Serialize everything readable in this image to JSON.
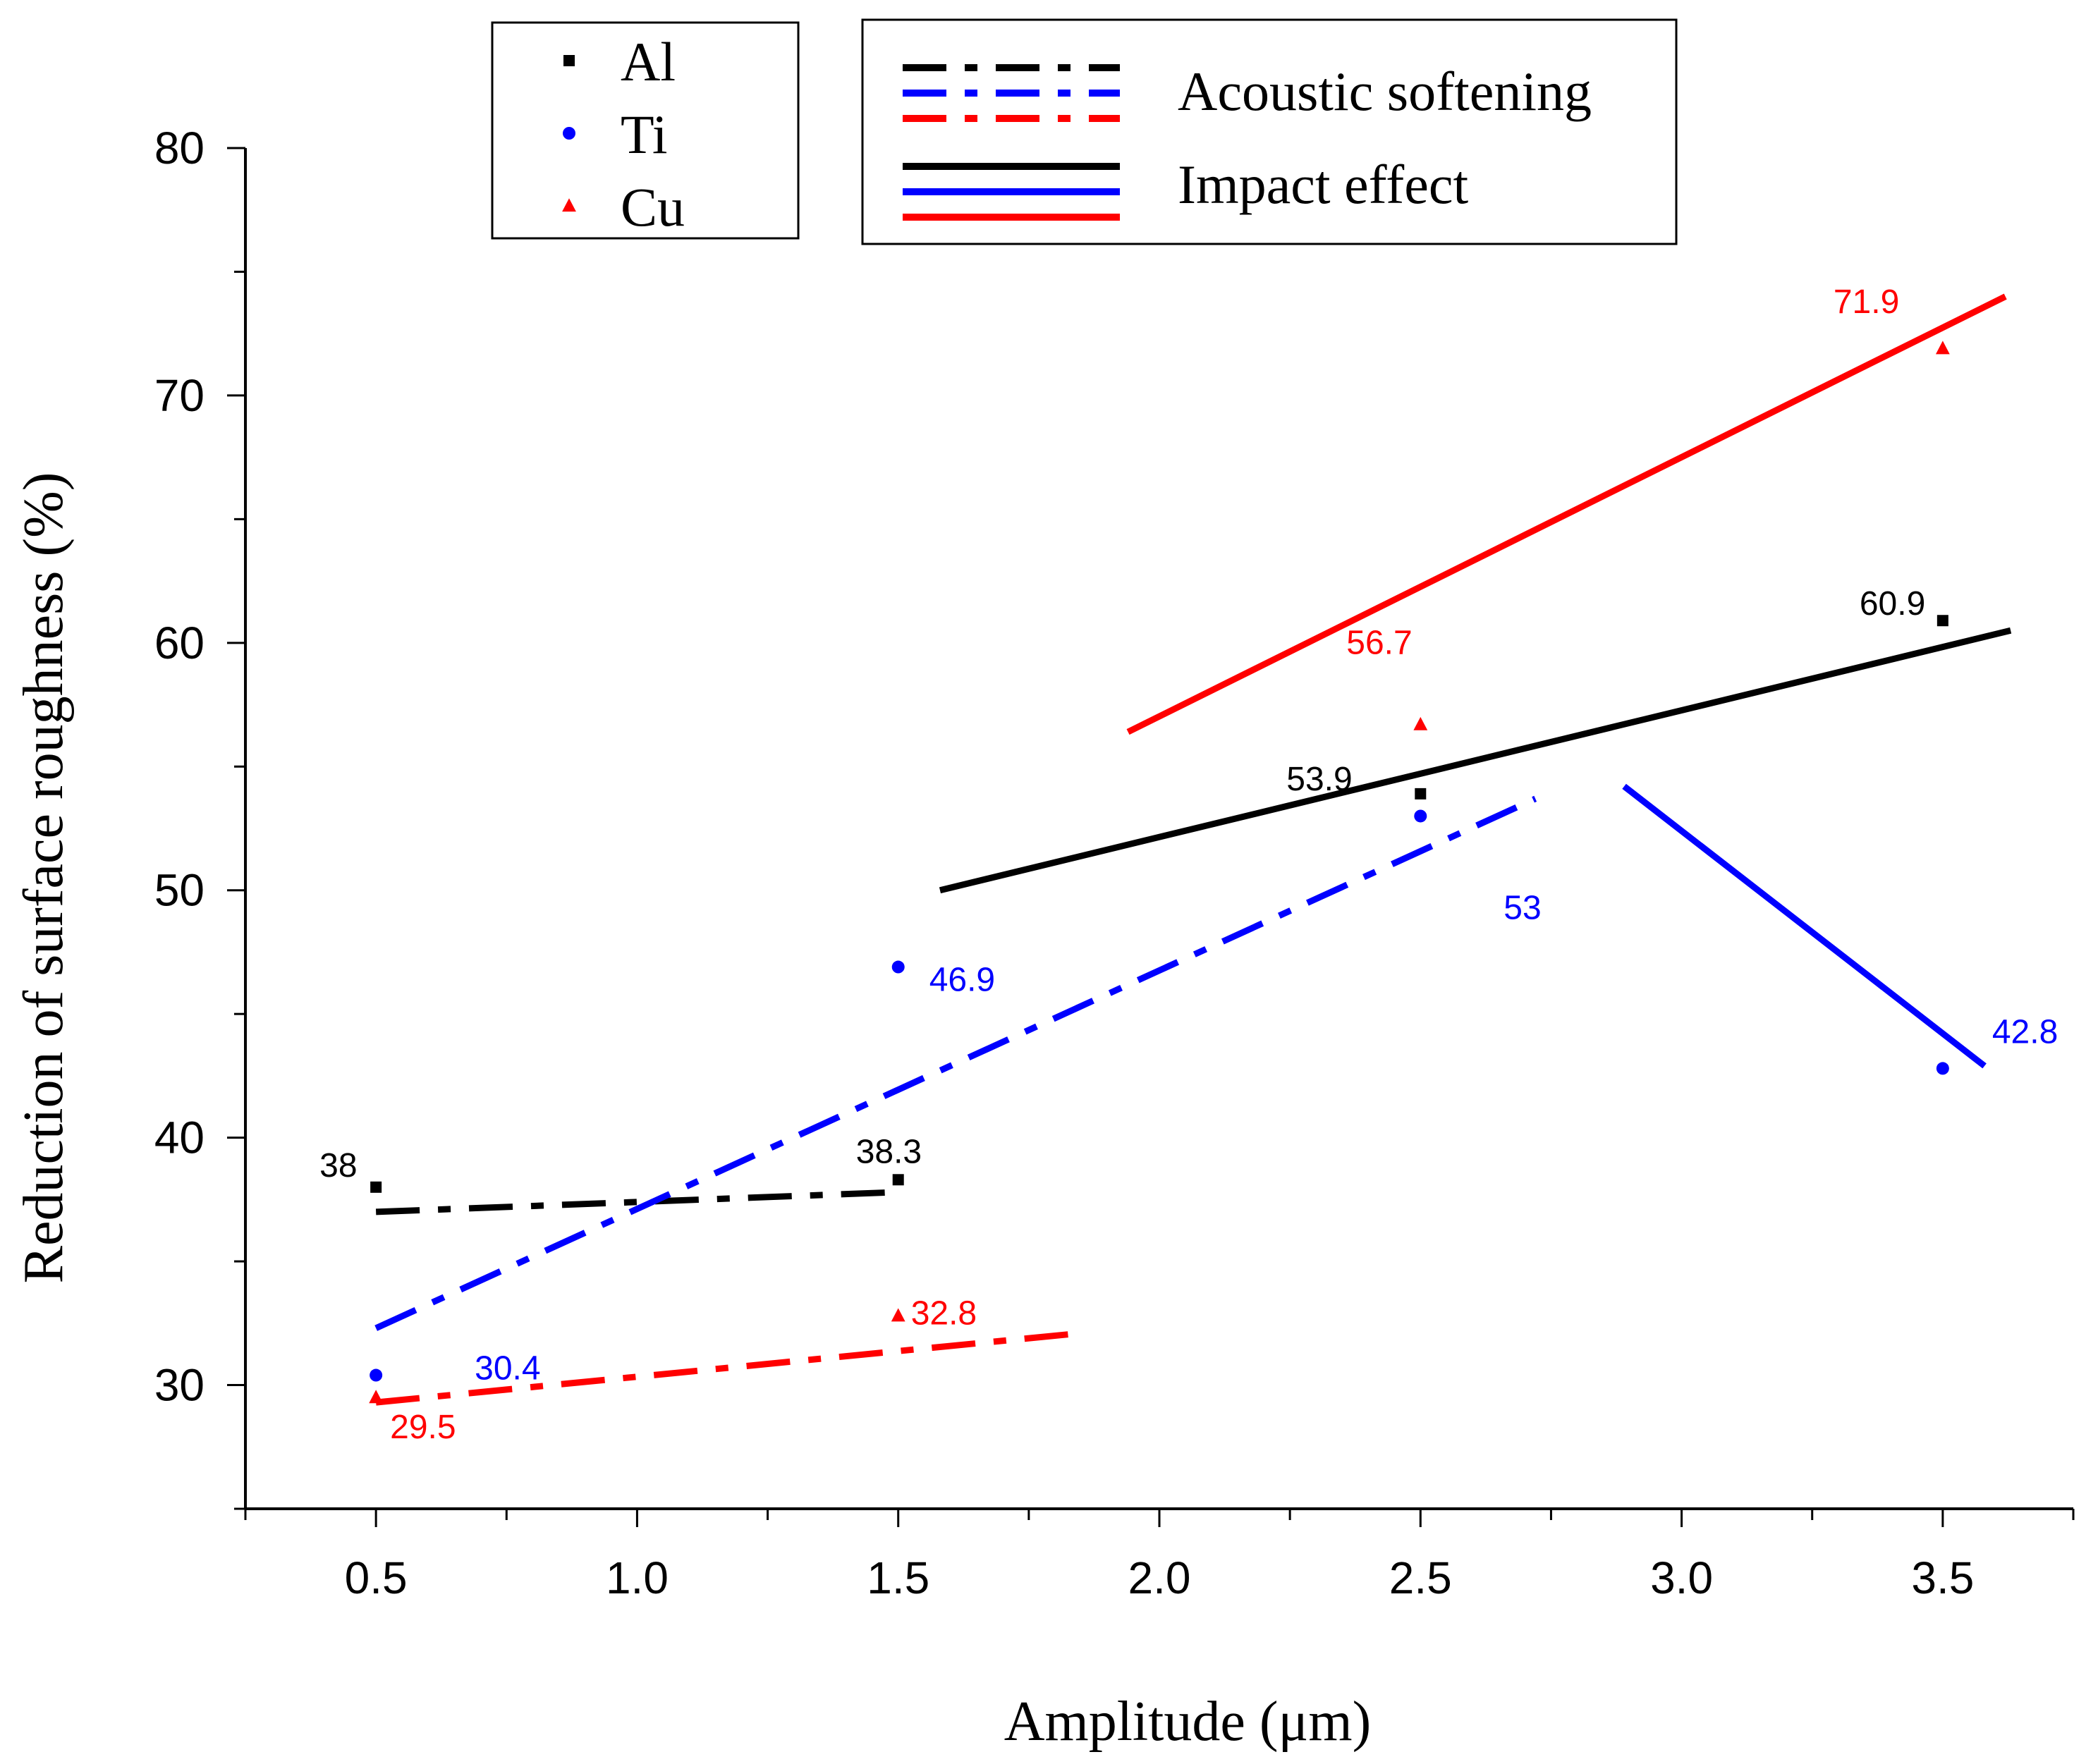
{
  "chart_data": {
    "type": "line",
    "xlabel": "Amplitude (μm)",
    "ylabel": "Reduction of surface roughness (%)",
    "xlim": [
      0.25,
      3.75
    ],
    "ylim": [
      25,
      80
    ],
    "x_ticks": [
      0.5,
      1.0,
      1.5,
      2.0,
      2.5,
      3.0,
      3.5
    ],
    "x_tick_labels": [
      "0.5",
      "1.0",
      "1.5",
      "2.0",
      "2.5",
      "3.0",
      "3.5"
    ],
    "y_ticks": [
      30,
      40,
      50,
      60,
      70,
      80
    ],
    "y_tick_labels": [
      "30",
      "40",
      "50",
      "60",
      "70",
      "80"
    ],
    "colors": {
      "Al": "#000000",
      "Ti": "#0000ff",
      "Cu": "#ff0000"
    },
    "series": [
      {
        "name": "Al",
        "marker": "square",
        "color": "#000000",
        "x": [
          0.5,
          1.5,
          2.5,
          3.5
        ],
        "values": [
          38,
          38.3,
          53.9,
          60.9
        ],
        "labels": [
          "38",
          "38.3",
          "53.9",
          "60.9"
        ]
      },
      {
        "name": "Ti",
        "marker": "circle",
        "color": "#0000ff",
        "x": [
          0.5,
          1.5,
          2.5,
          3.5
        ],
        "values": [
          30.4,
          46.9,
          53,
          42.8
        ],
        "labels": [
          "30.4",
          "46.9",
          "53",
          "42.8"
        ]
      },
      {
        "name": "Cu",
        "marker": "triangle",
        "color": "#ff0000",
        "x": [
          0.5,
          1.5,
          2.5,
          3.5
        ],
        "values": [
          29.5,
          32.8,
          56.7,
          71.9
        ],
        "labels": [
          "29.5",
          "32.8",
          "56.7",
          "71.9"
        ]
      }
    ],
    "trend_lines": [
      {
        "group": "Acoustic softening",
        "series": "Al",
        "style": "dashdot",
        "color": "#000000",
        "x": [
          0.5,
          1.5
        ],
        "y": [
          37,
          37.8
        ]
      },
      {
        "group": "Acoustic softening",
        "series": "Ti",
        "style": "dashdot",
        "color": "#0000ff",
        "x": [
          0.5,
          2.72
        ],
        "y": [
          32.3,
          53.7
        ]
      },
      {
        "group": "Acoustic softening",
        "series": "Cu",
        "style": "dashdot",
        "color": "#ff0000",
        "x": [
          0.5,
          1.85
        ],
        "y": [
          29.3,
          32.1
        ]
      },
      {
        "group": "Impact effect",
        "series": "Al",
        "style": "solid",
        "color": "#000000",
        "x": [
          1.58,
          3.63
        ],
        "y": [
          50,
          60.5
        ]
      },
      {
        "group": "Impact effect",
        "series": "Ti",
        "style": "solid",
        "color": "#0000ff",
        "x": [
          2.89,
          3.58
        ],
        "y": [
          54.2,
          42.9
        ]
      },
      {
        "group": "Impact effect",
        "series": "Cu",
        "style": "solid",
        "color": "#ff0000",
        "x": [
          1.94,
          3.62
        ],
        "y": [
          56.4,
          74
        ]
      }
    ],
    "legend_markers": {
      "placement": "top-left",
      "entries": [
        "Al",
        "Ti",
        "Cu"
      ]
    },
    "legend_lines": {
      "placement": "top-center",
      "entries": [
        {
          "label": "Acoustic softening",
          "style": "dashdot",
          "colors": [
            "#000000",
            "#0000ff",
            "#ff0000"
          ]
        },
        {
          "label": "Impact effect",
          "style": "solid",
          "colors": [
            "#000000",
            "#0000ff",
            "#ff0000"
          ]
        }
      ]
    }
  }
}
